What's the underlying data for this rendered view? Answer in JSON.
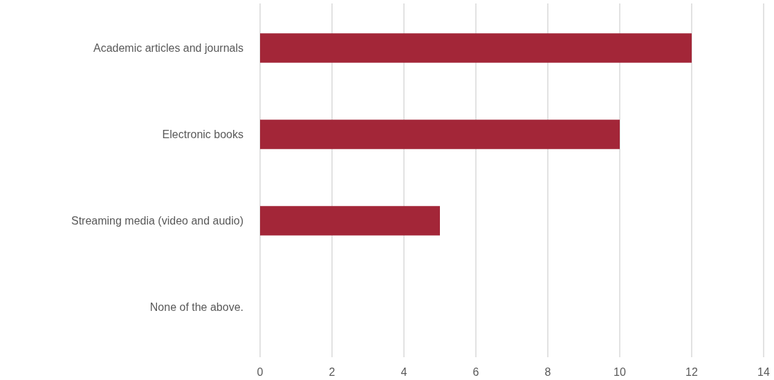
{
  "chart_data": {
    "type": "bar",
    "orientation": "horizontal",
    "categories": [
      "Academic articles and journals",
      "Electronic books",
      "Streaming media (video and audio)",
      "None of the above."
    ],
    "values": [
      12,
      10,
      5,
      0
    ],
    "color": "#a32638",
    "xlim": [
      0,
      14
    ],
    "xticks": [
      0,
      2,
      4,
      6,
      8,
      10,
      12,
      14
    ],
    "grid": "x"
  }
}
